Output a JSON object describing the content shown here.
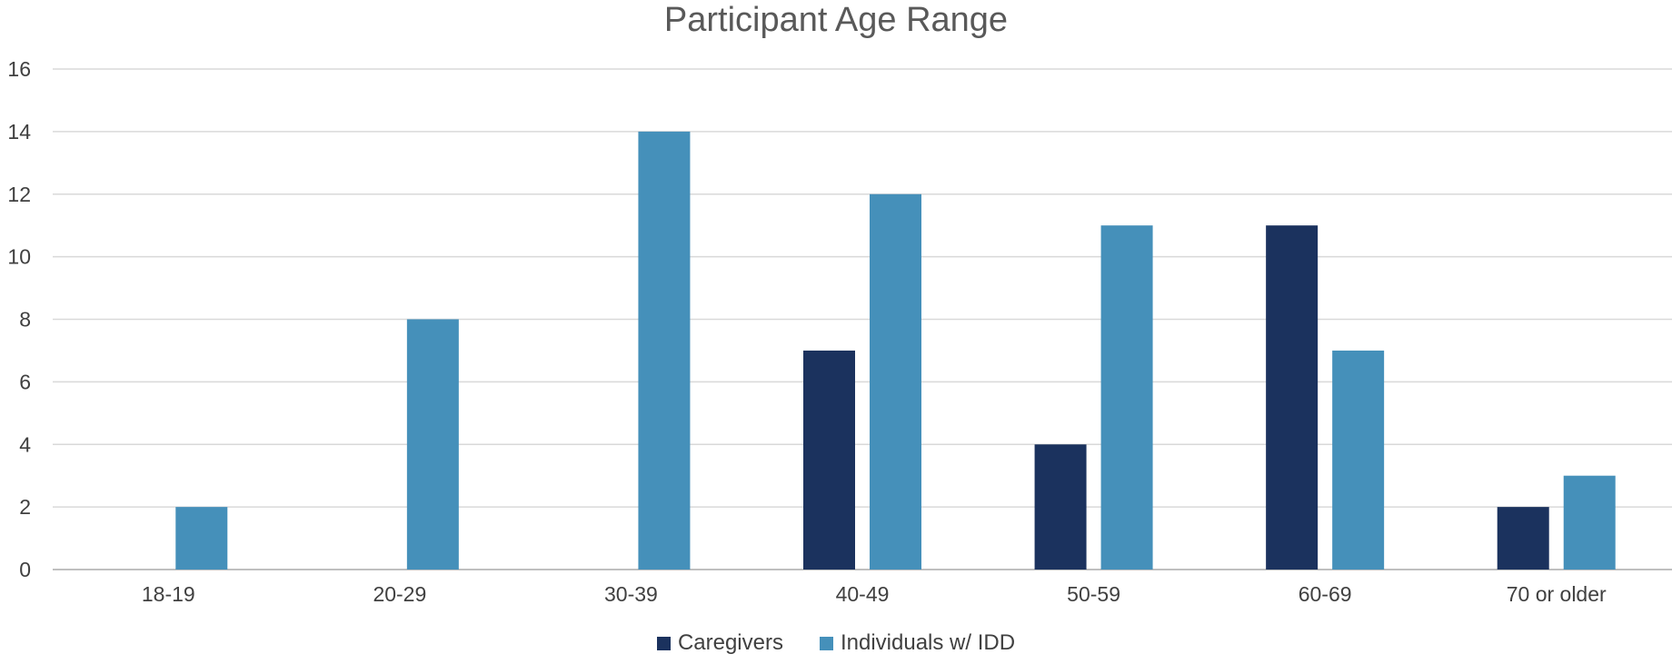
{
  "chart_data": {
    "type": "bar",
    "title": "Participant Age Range",
    "xlabel": "",
    "ylabel": "",
    "categories": [
      "18-19",
      "20-29",
      "30-39",
      "40-49",
      "50-59",
      "60-69",
      "70 or older"
    ],
    "series": [
      {
        "name": "Caregivers",
        "color": "#1b325e",
        "values": [
          0,
          0,
          0,
          7,
          4,
          11,
          2
        ]
      },
      {
        "name": "Individuals w/ IDD",
        "color": "#4590ba",
        "values": [
          2,
          8,
          14,
          12,
          11,
          7,
          3
        ]
      }
    ],
    "ylim": [
      0,
      16
    ],
    "yticks": [
      0,
      2,
      4,
      6,
      8,
      10,
      12,
      14,
      16
    ],
    "grid": true,
    "legend_position": "bottom"
  }
}
